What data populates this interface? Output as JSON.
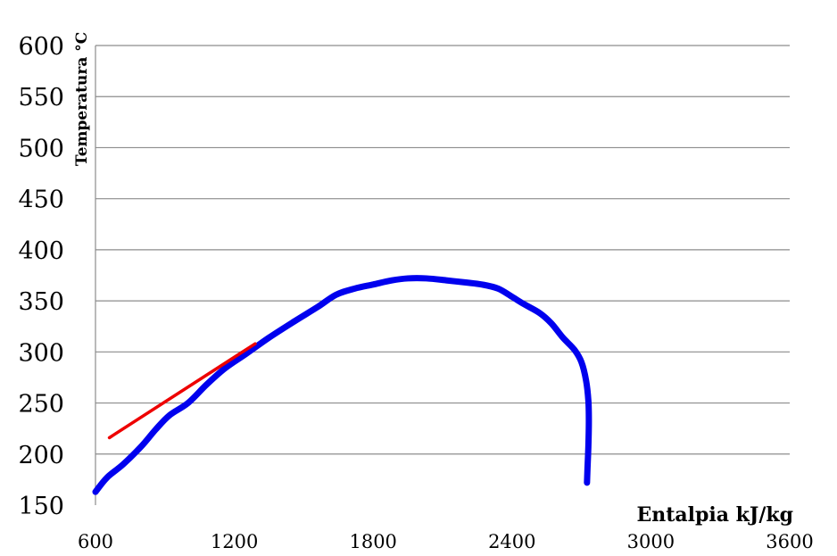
{
  "chart_data": {
    "type": "line",
    "title": "",
    "xlabel": "Entalpia kJ/kg",
    "ylabel": "Temperatura °C",
    "xlim": [
      600,
      3600
    ],
    "ylim": [
      150,
      600
    ],
    "x_ticks": [
      600,
      1200,
      1800,
      2400,
      3000,
      3600
    ],
    "y_ticks": [
      150,
      200,
      250,
      300,
      350,
      400,
      450,
      500,
      550,
      600
    ],
    "grid": "horizontal",
    "legend": "none",
    "series": [
      {
        "color": "#0000ee",
        "points": [
          [
            600,
            163
          ],
          [
            650,
            177
          ],
          [
            720,
            190
          ],
          [
            800,
            208
          ],
          [
            860,
            224
          ],
          [
            920,
            238
          ],
          [
            1000,
            250
          ],
          [
            1080,
            268
          ],
          [
            1160,
            284
          ],
          [
            1250,
            298
          ],
          [
            1350,
            314
          ],
          [
            1460,
            330
          ],
          [
            1560,
            344
          ],
          [
            1640,
            356
          ],
          [
            1720,
            362
          ],
          [
            1800,
            366
          ],
          [
            1880,
            370
          ],
          [
            1950,
            372
          ],
          [
            2030,
            372
          ],
          [
            2120,
            370
          ],
          [
            2200,
            368
          ],
          [
            2270,
            366
          ],
          [
            2340,
            362
          ],
          [
            2400,
            354
          ],
          [
            2450,
            347
          ],
          [
            2520,
            338
          ],
          [
            2570,
            328
          ],
          [
            2620,
            314
          ],
          [
            2670,
            302
          ],
          [
            2700,
            290
          ],
          [
            2720,
            272
          ],
          [
            2730,
            252
          ],
          [
            2732,
            232
          ],
          [
            2730,
            208
          ],
          [
            2726,
            185
          ],
          [
            2724,
            172
          ]
        ]
      },
      {
        "color": "#ee0000",
        "points": [
          [
            660,
            216
          ],
          [
            1290,
            308
          ]
        ]
      }
    ]
  }
}
